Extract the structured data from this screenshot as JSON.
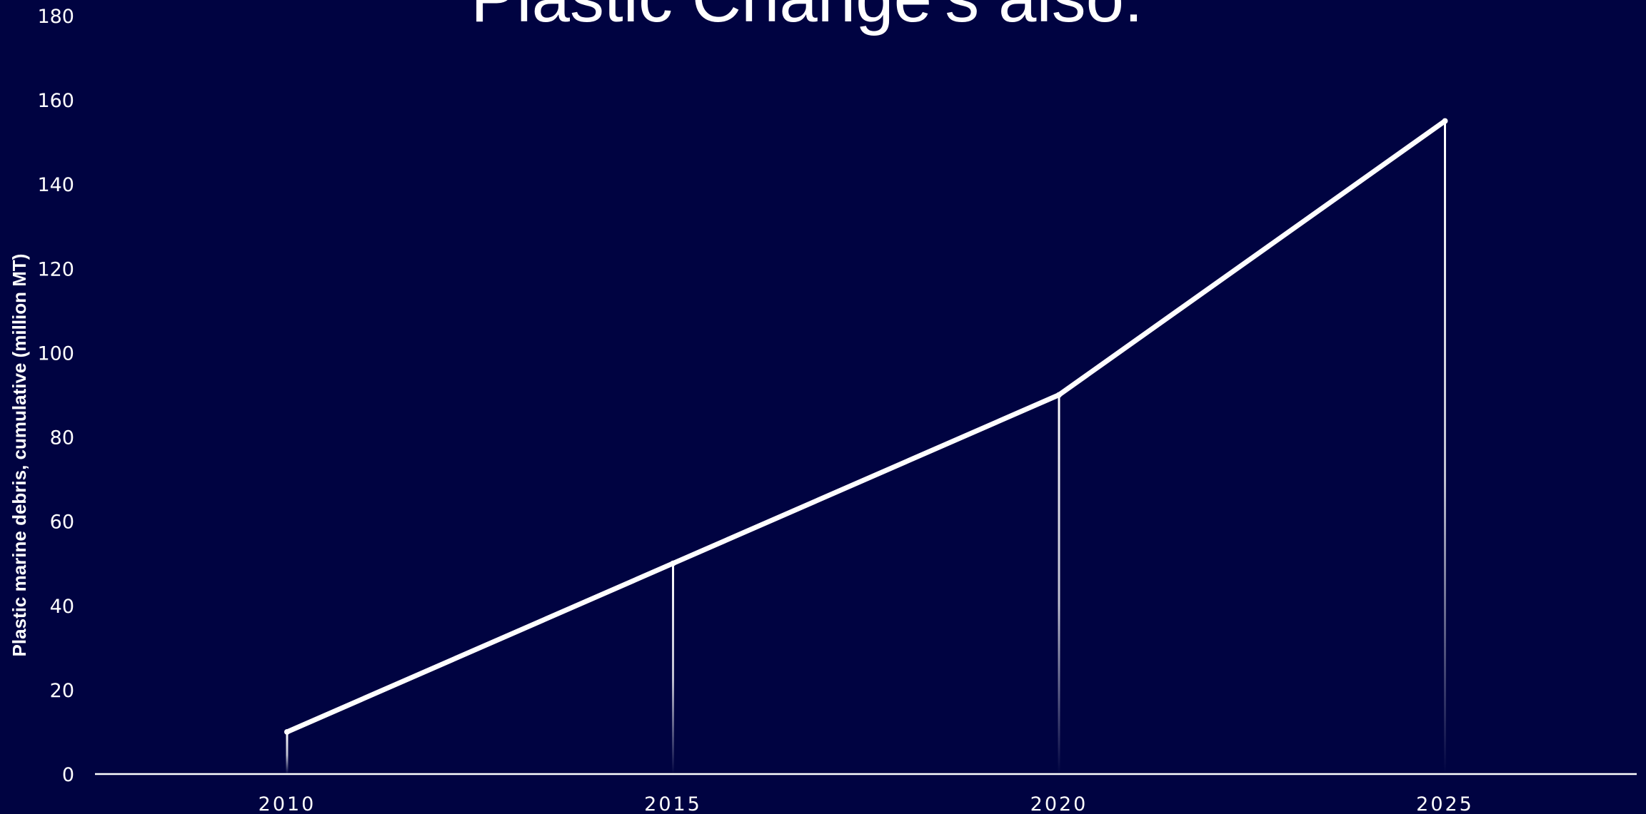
{
  "chart_data": {
    "type": "line",
    "title": "Plastic Change's also:",
    "xlabel": "",
    "ylabel": "Plastic marine debris,  cumulative (million MT)",
    "x": [
      "2010",
      "2015",
      "2020",
      "2025"
    ],
    "series": [
      {
        "values": [
          10,
          50,
          90,
          155
        ]
      }
    ],
    "ylim": [
      0,
      180
    ],
    "yticks": [
      0,
      20,
      40,
      60,
      80,
      100,
      120,
      140,
      160,
      180
    ],
    "grid": false,
    "legend": "none",
    "drop_lines": true
  },
  "colors": {
    "background": "#000341",
    "line": "#ffffff",
    "text": "#ffffff"
  }
}
